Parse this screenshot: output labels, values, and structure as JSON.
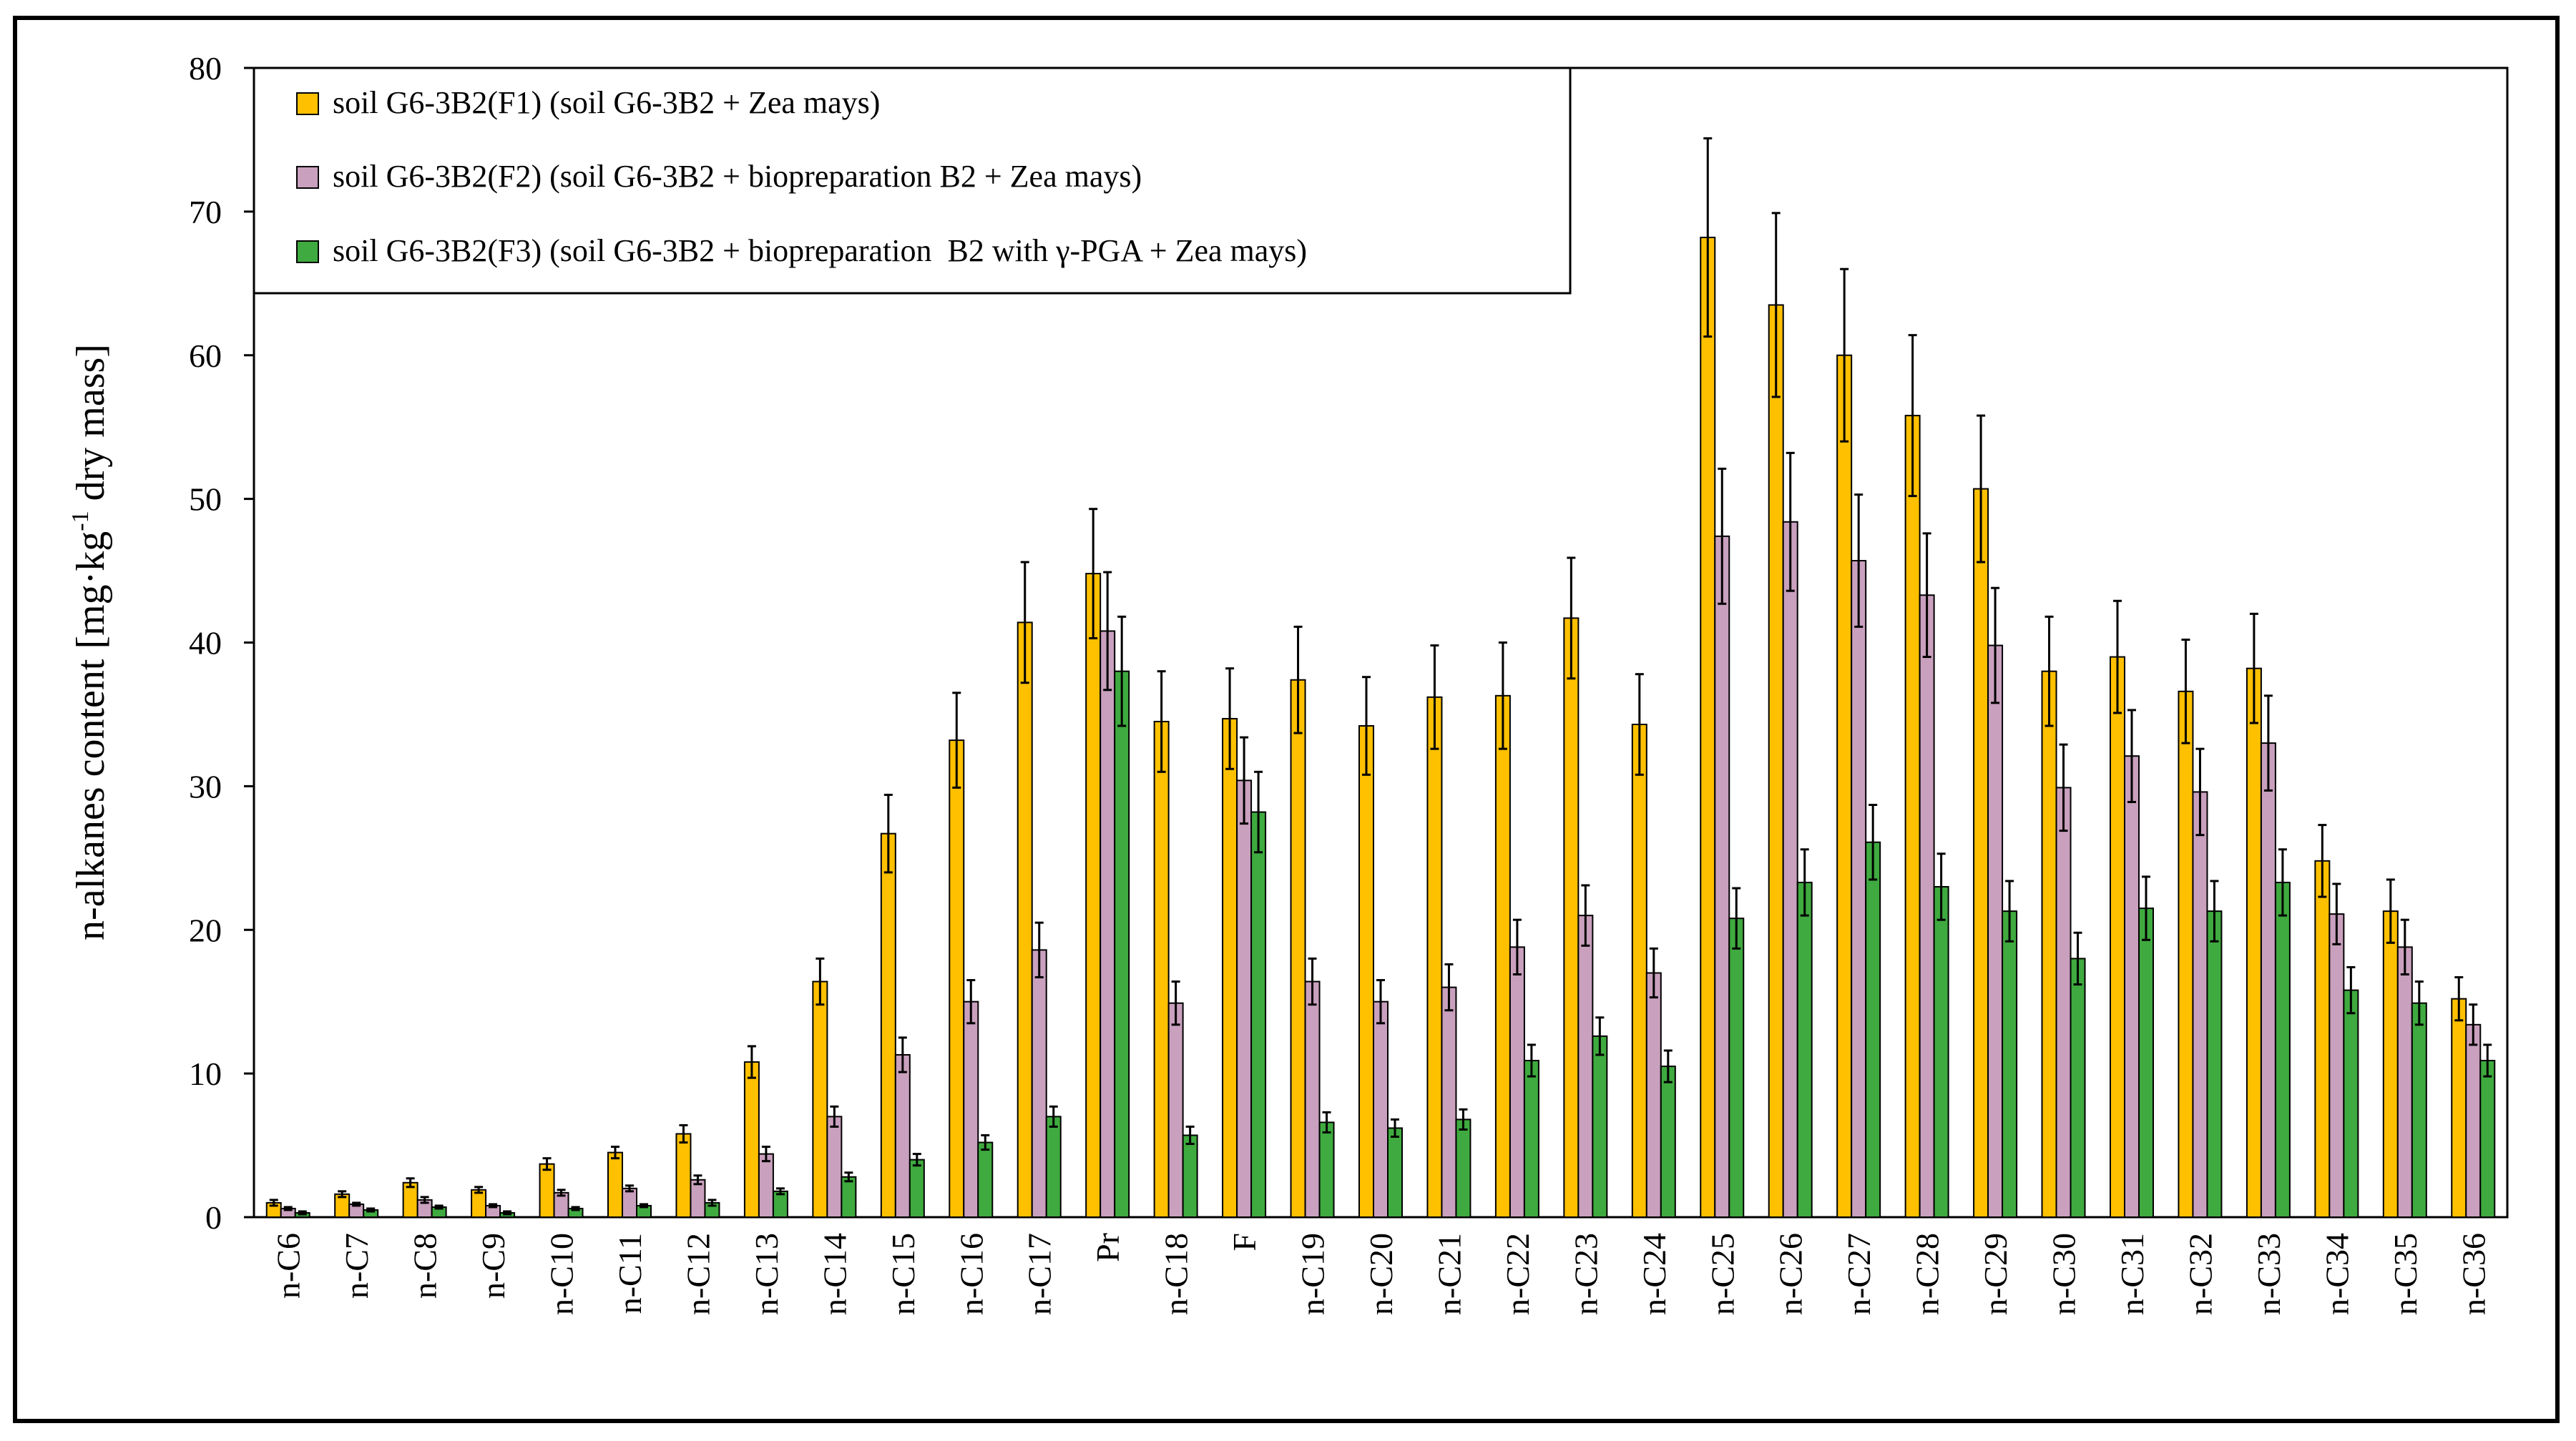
{
  "chart_data": {
    "type": "bar",
    "title": "",
    "xlabel": "",
    "ylabel": "n-alkanes content [mg·kg⁻¹ dry mass]",
    "ylabel_main": "n-alkanes content [mg·kg",
    "ylabel_sup": "-1",
    "ylabel_tail": " dry mass]",
    "ylim": [
      0,
      80
    ],
    "yticks": [
      0,
      10,
      20,
      30,
      40,
      50,
      60,
      70,
      80
    ],
    "legend_position": "top-left",
    "categories": [
      "n-C6",
      "n-C7",
      "n-C8",
      "n-C9",
      "n-C10",
      "n-C11",
      "n-C12",
      "n-C13",
      "n-C14",
      "n-C15",
      "n-C16",
      "n-C17",
      "Pr",
      "n-C18",
      "F",
      "n-C19",
      "n-C20",
      "n-C21",
      "n-C22",
      "n-C23",
      "n-C24",
      "n-C25",
      "n-C26",
      "n-C27",
      "n-C28",
      "n-C29",
      "n-C30",
      "n-C31",
      "n-C32",
      "n-C33",
      "n-C34",
      "n-C35",
      "n-C36"
    ],
    "series": [
      {
        "name": "soil G6-3B2(F1) (soil G6-3B2 + Zea mays)",
        "color": "#FFC000",
        "values": [
          1.0,
          1.6,
          2.4,
          1.9,
          3.7,
          4.5,
          5.8,
          10.8,
          16.4,
          26.7,
          33.2,
          41.4,
          44.8,
          34.5,
          34.7,
          37.4,
          34.2,
          36.2,
          36.3,
          41.7,
          34.3,
          68.2,
          63.5,
          60.0,
          55.8,
          50.7,
          38.0,
          39.0,
          36.6,
          38.2,
          24.8,
          21.3,
          15.2
        ],
        "errors": [
          0.2,
          0.2,
          0.3,
          0.2,
          0.4,
          0.4,
          0.6,
          1.1,
          1.6,
          2.7,
          3.3,
          4.2,
          4.5,
          3.5,
          3.5,
          3.7,
          3.4,
          3.6,
          3.7,
          4.2,
          3.5,
          6.9,
          6.4,
          6.0,
          5.6,
          5.1,
          3.8,
          3.9,
          3.6,
          3.8,
          2.5,
          2.2,
          1.5
        ]
      },
      {
        "name": "soil G6-3B2(F2) (soil G6-3B2 + biopreparation B2 + Zea mays)",
        "color": "#C9A0BE",
        "values": [
          0.6,
          0.9,
          1.2,
          0.8,
          1.7,
          2.0,
          2.6,
          4.4,
          7.0,
          11.3,
          15.0,
          18.6,
          40.8,
          14.9,
          30.4,
          16.4,
          15.0,
          16.0,
          18.8,
          21.0,
          17.0,
          47.4,
          48.4,
          45.7,
          43.3,
          39.8,
          29.9,
          32.1,
          29.6,
          33.0,
          21.1,
          18.8,
          13.4
        ],
        "errors": [
          0.1,
          0.1,
          0.2,
          0.1,
          0.2,
          0.2,
          0.3,
          0.5,
          0.7,
          1.2,
          1.5,
          1.9,
          4.1,
          1.5,
          3.0,
          1.6,
          1.5,
          1.6,
          1.9,
          2.1,
          1.7,
          4.7,
          4.8,
          4.6,
          4.3,
          4.0,
          3.0,
          3.2,
          3.0,
          3.3,
          2.1,
          1.9,
          1.4
        ]
      },
      {
        "name": "soil G6-3B2(F3) (soil G6-3B2 + biopreparation  B2 with γ-PGA + Zea mays)",
        "color": "#3FAA3F",
        "values": [
          0.3,
          0.5,
          0.7,
          0.3,
          0.6,
          0.8,
          1.0,
          1.8,
          2.8,
          4.0,
          5.2,
          7.0,
          38.0,
          5.7,
          28.2,
          6.6,
          6.2,
          6.8,
          10.9,
          12.6,
          10.5,
          20.8,
          23.3,
          26.1,
          23.0,
          21.3,
          18.0,
          21.5,
          21.3,
          23.3,
          15.8,
          14.9,
          10.9
        ],
        "errors": [
          0.1,
          0.1,
          0.1,
          0.1,
          0.1,
          0.1,
          0.2,
          0.2,
          0.3,
          0.4,
          0.5,
          0.7,
          3.8,
          0.6,
          2.8,
          0.7,
          0.6,
          0.7,
          1.1,
          1.3,
          1.1,
          2.1,
          2.3,
          2.6,
          2.3,
          2.1,
          1.8,
          2.2,
          2.1,
          2.3,
          1.6,
          1.5,
          1.1
        ]
      }
    ]
  }
}
